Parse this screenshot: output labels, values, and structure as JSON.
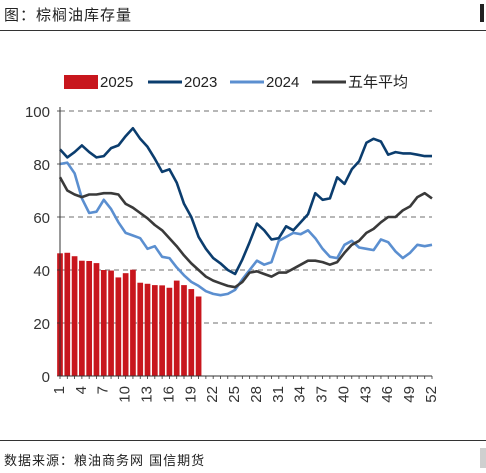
{
  "header": {
    "title": "图：棕榈油库存量"
  },
  "footer": {
    "source": "数据来源：粮油商务网 国信期货"
  },
  "colors": {
    "s2025": "#c8161d",
    "s2023": "#0b3d6e",
    "s2024": "#5b8fd0",
    "avg5": "#3a3a3a",
    "grid": "#8c8c8c"
  },
  "chart_data": {
    "type": "bar+line",
    "title": "",
    "xlabel": "",
    "ylabel": "",
    "ylim": [
      0,
      100
    ],
    "yticks": [
      0,
      20,
      40,
      60,
      80,
      100
    ],
    "xlim": [
      1,
      52
    ],
    "xticks": [
      1,
      4,
      7,
      10,
      13,
      16,
      19,
      22,
      25,
      28,
      31,
      34,
      37,
      40,
      43,
      46,
      49,
      52
    ],
    "legend_position": "top",
    "grid": "horizontal dashed",
    "series": [
      {
        "name": "2025",
        "kind": "bar",
        "x": [
          1,
          2,
          3,
          4,
          5,
          6,
          7,
          8,
          9,
          10,
          11,
          12,
          13,
          14,
          15,
          16,
          17,
          18,
          19,
          20
        ],
        "values": [
          46.3,
          46.5,
          45.2,
          43.5,
          43.4,
          42.6,
          40.0,
          39.8,
          37.2,
          38.8,
          40.1,
          35.2,
          34.8,
          34.3,
          34.2,
          33.3,
          36.0,
          34.3,
          32.8,
          30.0
        ]
      },
      {
        "name": "2023",
        "kind": "line",
        "x": [
          1,
          2,
          3,
          4,
          5,
          6,
          7,
          8,
          9,
          10,
          11,
          12,
          13,
          14,
          15,
          16,
          17,
          18,
          19,
          20,
          21,
          22,
          23,
          24,
          25,
          26,
          27,
          28,
          29,
          30,
          31,
          32,
          33,
          34,
          35,
          36,
          37,
          38,
          39,
          40,
          41,
          42,
          43,
          44,
          45,
          46,
          47,
          48,
          49,
          50,
          51,
          52
        ],
        "values": [
          85.5,
          82.5,
          84.5,
          87.0,
          84.5,
          82.5,
          83.0,
          86.0,
          87.0,
          90.5,
          93.5,
          89.5,
          86.5,
          82.0,
          77.0,
          78.0,
          73.0,
          65.0,
          60.0,
          52.5,
          48.0,
          44.5,
          42.5,
          40.0,
          38.5,
          44.0,
          50.5,
          57.5,
          55.0,
          51.5,
          52.0,
          56.5,
          55.0,
          58.0,
          61.0,
          69.0,
          66.5,
          67.0,
          75.0,
          72.5,
          78.0,
          81.0,
          88.0,
          89.5,
          88.5,
          83.5,
          84.5,
          84.0,
          84.0,
          83.5,
          83.0,
          83.0
        ]
      },
      {
        "name": "2024",
        "kind": "line",
        "x": [
          1,
          2,
          3,
          4,
          5,
          6,
          7,
          8,
          9,
          10,
          11,
          12,
          13,
          14,
          15,
          16,
          17,
          18,
          19,
          20,
          21,
          22,
          23,
          24,
          25,
          26,
          27,
          28,
          29,
          30,
          31,
          32,
          33,
          34,
          35,
          36,
          37,
          38,
          39,
          40,
          41,
          42,
          43,
          44,
          45,
          46,
          47,
          48,
          49,
          50,
          51,
          52
        ],
        "values": [
          80.0,
          80.5,
          76.5,
          67.0,
          61.5,
          62.0,
          66.5,
          63.0,
          58.0,
          54.0,
          53.0,
          52.0,
          48.0,
          49.0,
          45.0,
          44.5,
          41.0,
          38.0,
          35.5,
          34.0,
          32.0,
          31.0,
          30.5,
          31.0,
          32.5,
          36.5,
          40.0,
          43.5,
          42.0,
          43.0,
          51.0,
          52.5,
          54.0,
          53.5,
          55.0,
          52.0,
          48.0,
          45.0,
          44.5,
          49.5,
          51.0,
          48.5,
          48.0,
          47.5,
          51.5,
          50.5,
          47.0,
          44.5,
          46.5,
          49.5,
          49.0,
          49.5
        ]
      },
      {
        "name": "五年平均",
        "kind": "line",
        "x": [
          1,
          2,
          3,
          4,
          5,
          6,
          7,
          8,
          9,
          10,
          11,
          12,
          13,
          14,
          15,
          16,
          17,
          18,
          19,
          20,
          21,
          22,
          23,
          24,
          25,
          26,
          27,
          28,
          29,
          30,
          31,
          32,
          33,
          34,
          35,
          36,
          37,
          38,
          39,
          40,
          41,
          42,
          43,
          44,
          45,
          46,
          47,
          48,
          49,
          50,
          51,
          52
        ],
        "values": [
          75.0,
          70.0,
          68.5,
          67.5,
          68.5,
          68.5,
          69.0,
          69.0,
          68.5,
          65.0,
          63.5,
          61.5,
          59.5,
          57.0,
          55.0,
          52.0,
          49.0,
          45.5,
          42.5,
          40.0,
          37.5,
          36.0,
          35.0,
          34.0,
          33.5,
          35.5,
          39.0,
          39.5,
          38.5,
          37.5,
          39.0,
          39.0,
          40.5,
          42.0,
          43.5,
          43.5,
          43.0,
          42.0,
          43.0,
          46.5,
          49.5,
          51.0,
          54.0,
          55.5,
          58.0,
          60.0,
          60.0,
          62.5,
          64.0,
          67.5,
          69.0,
          67.0
        ]
      }
    ]
  }
}
